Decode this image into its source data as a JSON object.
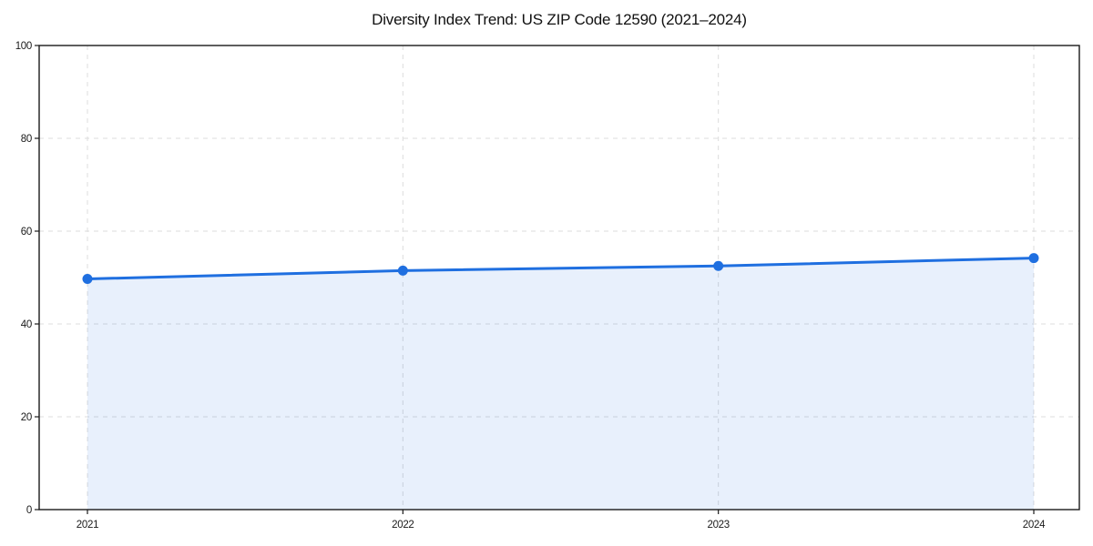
{
  "title": "Diversity Index Trend: US ZIP Code 12590 (2021–2024)",
  "chart_data": {
    "type": "area",
    "title": "Diversity Index Trend: US ZIP Code 12590 (2021–2024)",
    "categories": [
      "2021",
      "2022",
      "2023",
      "2024"
    ],
    "series": [
      {
        "name": "Diversity Index",
        "values": [
          49.7,
          51.5,
          52.5,
          54.2
        ]
      }
    ],
    "xlabel": "",
    "ylabel": "",
    "ylim": [
      0,
      100
    ],
    "yticks": [
      0,
      20,
      40,
      60,
      80,
      100
    ],
    "grid": "dashed, horizontal and vertical",
    "legend": "none",
    "colors": {
      "line": "#1f6fe0",
      "marker": "#1f6fe0",
      "fill": "rgba(31,111,224,0.10)",
      "gridline": "#dcdcdc",
      "spine": "#1a1a1a",
      "text": "#1a1a1a",
      "background": "#ffffff"
    }
  }
}
